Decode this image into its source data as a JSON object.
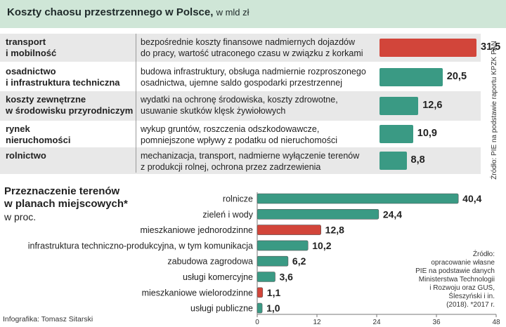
{
  "top": {
    "title": "Koszty chaosu przestrzennego w Polsce,",
    "title_unit": "w mld zł",
    "source": "Źródło: PIE na podstawie raportu KPZK PAN"
  },
  "bottom": {
    "title_line1": "Przeznaczenie terenów",
    "title_line2": "w planach miejscowych*",
    "subtitle": "w proc.",
    "source_lines": [
      "Źródło:",
      "opracowanie własne",
      "PIE na podstawie danych",
      "Ministerstwa Technologii",
      "i Rozwoju oraz GUS,",
      "Śleszyński i in.",
      "(2018). *2017 r."
    ]
  },
  "credit": "Infografika: Tomasz Sitarski",
  "colors": {
    "green": "#3a9a84",
    "red": "#d2453a",
    "header_bg": "#cfe6d7",
    "row_shade": "#e8e8e8"
  },
  "chart_data": [
    {
      "type": "table",
      "title": "Koszty chaosu przestrzennego w Polsce, w mld zł",
      "rows": [
        {
          "category": [
            "transport",
            "i mobilność"
          ],
          "description": [
            "bezpośrednie koszty finansowe nadmiernych dojazdów",
            "do pracy, wartość utraconego czasu w związku z korkami"
          ],
          "value": 31.5,
          "label": "31,5",
          "highlight": true
        },
        {
          "category": [
            "osadnictwo",
            "i infrastruktura techniczna"
          ],
          "description": [
            "budowa infrastruktury, obsługa nadmiernie rozproszonego",
            "osadnictwa, ujemne saldo gospodarki przestrzennej"
          ],
          "value": 20.5,
          "label": "20,5",
          "highlight": false
        },
        {
          "category": [
            "koszty zewnętrzne",
            "w środowisku przyrodniczym"
          ],
          "description": [
            "wydatki na ochronę środowiska, koszty zdrowotne,",
            "usuwanie skutków klęsk żywiołowych"
          ],
          "value": 12.6,
          "label": "12,6",
          "highlight": false
        },
        {
          "category": [
            "rynek",
            "nieruchomości"
          ],
          "description": [
            "wykup gruntów, roszczenia odszkodowawcze,",
            "pomniejszone wpływy z podatku od nieruchomości"
          ],
          "value": 10.9,
          "label": "10,9",
          "highlight": false
        },
        {
          "category": [
            "rolnictwo"
          ],
          "description": [
            "mechanizacja, transport, nadmierne wyłączenie terenów",
            "z produkcji rolnej, ochrona przez zadrzewienia"
          ],
          "value": 8.8,
          "label": "8,8",
          "highlight": false
        }
      ]
    },
    {
      "type": "bar",
      "orientation": "horizontal",
      "title": "Przeznaczenie terenów w planach miejscowych*",
      "ylabel": "w proc.",
      "categories": [
        "rolnicze",
        "zieleń i wody",
        "mieszkaniowe jednorodzinne",
        "infrastruktura techniczno-produkcyjna, w tym komunikacja",
        "zabudowa zagrodowa",
        "usługi komercyjne",
        "mieszkaniowe wielorodzinne",
        "usługi publiczne"
      ],
      "values": [
        40.4,
        24.4,
        12.8,
        10.2,
        6.2,
        3.6,
        1.1,
        1.0
      ],
      "labels": [
        "40,4",
        "24,4",
        "12,8",
        "10,2",
        "6,2",
        "3,6",
        "1,1",
        "1,0"
      ],
      "highlight": [
        false,
        false,
        true,
        false,
        false,
        false,
        true,
        false
      ],
      "xlim": [
        0,
        48
      ],
      "xticks": [
        0,
        12,
        24,
        36,
        48
      ]
    }
  ]
}
